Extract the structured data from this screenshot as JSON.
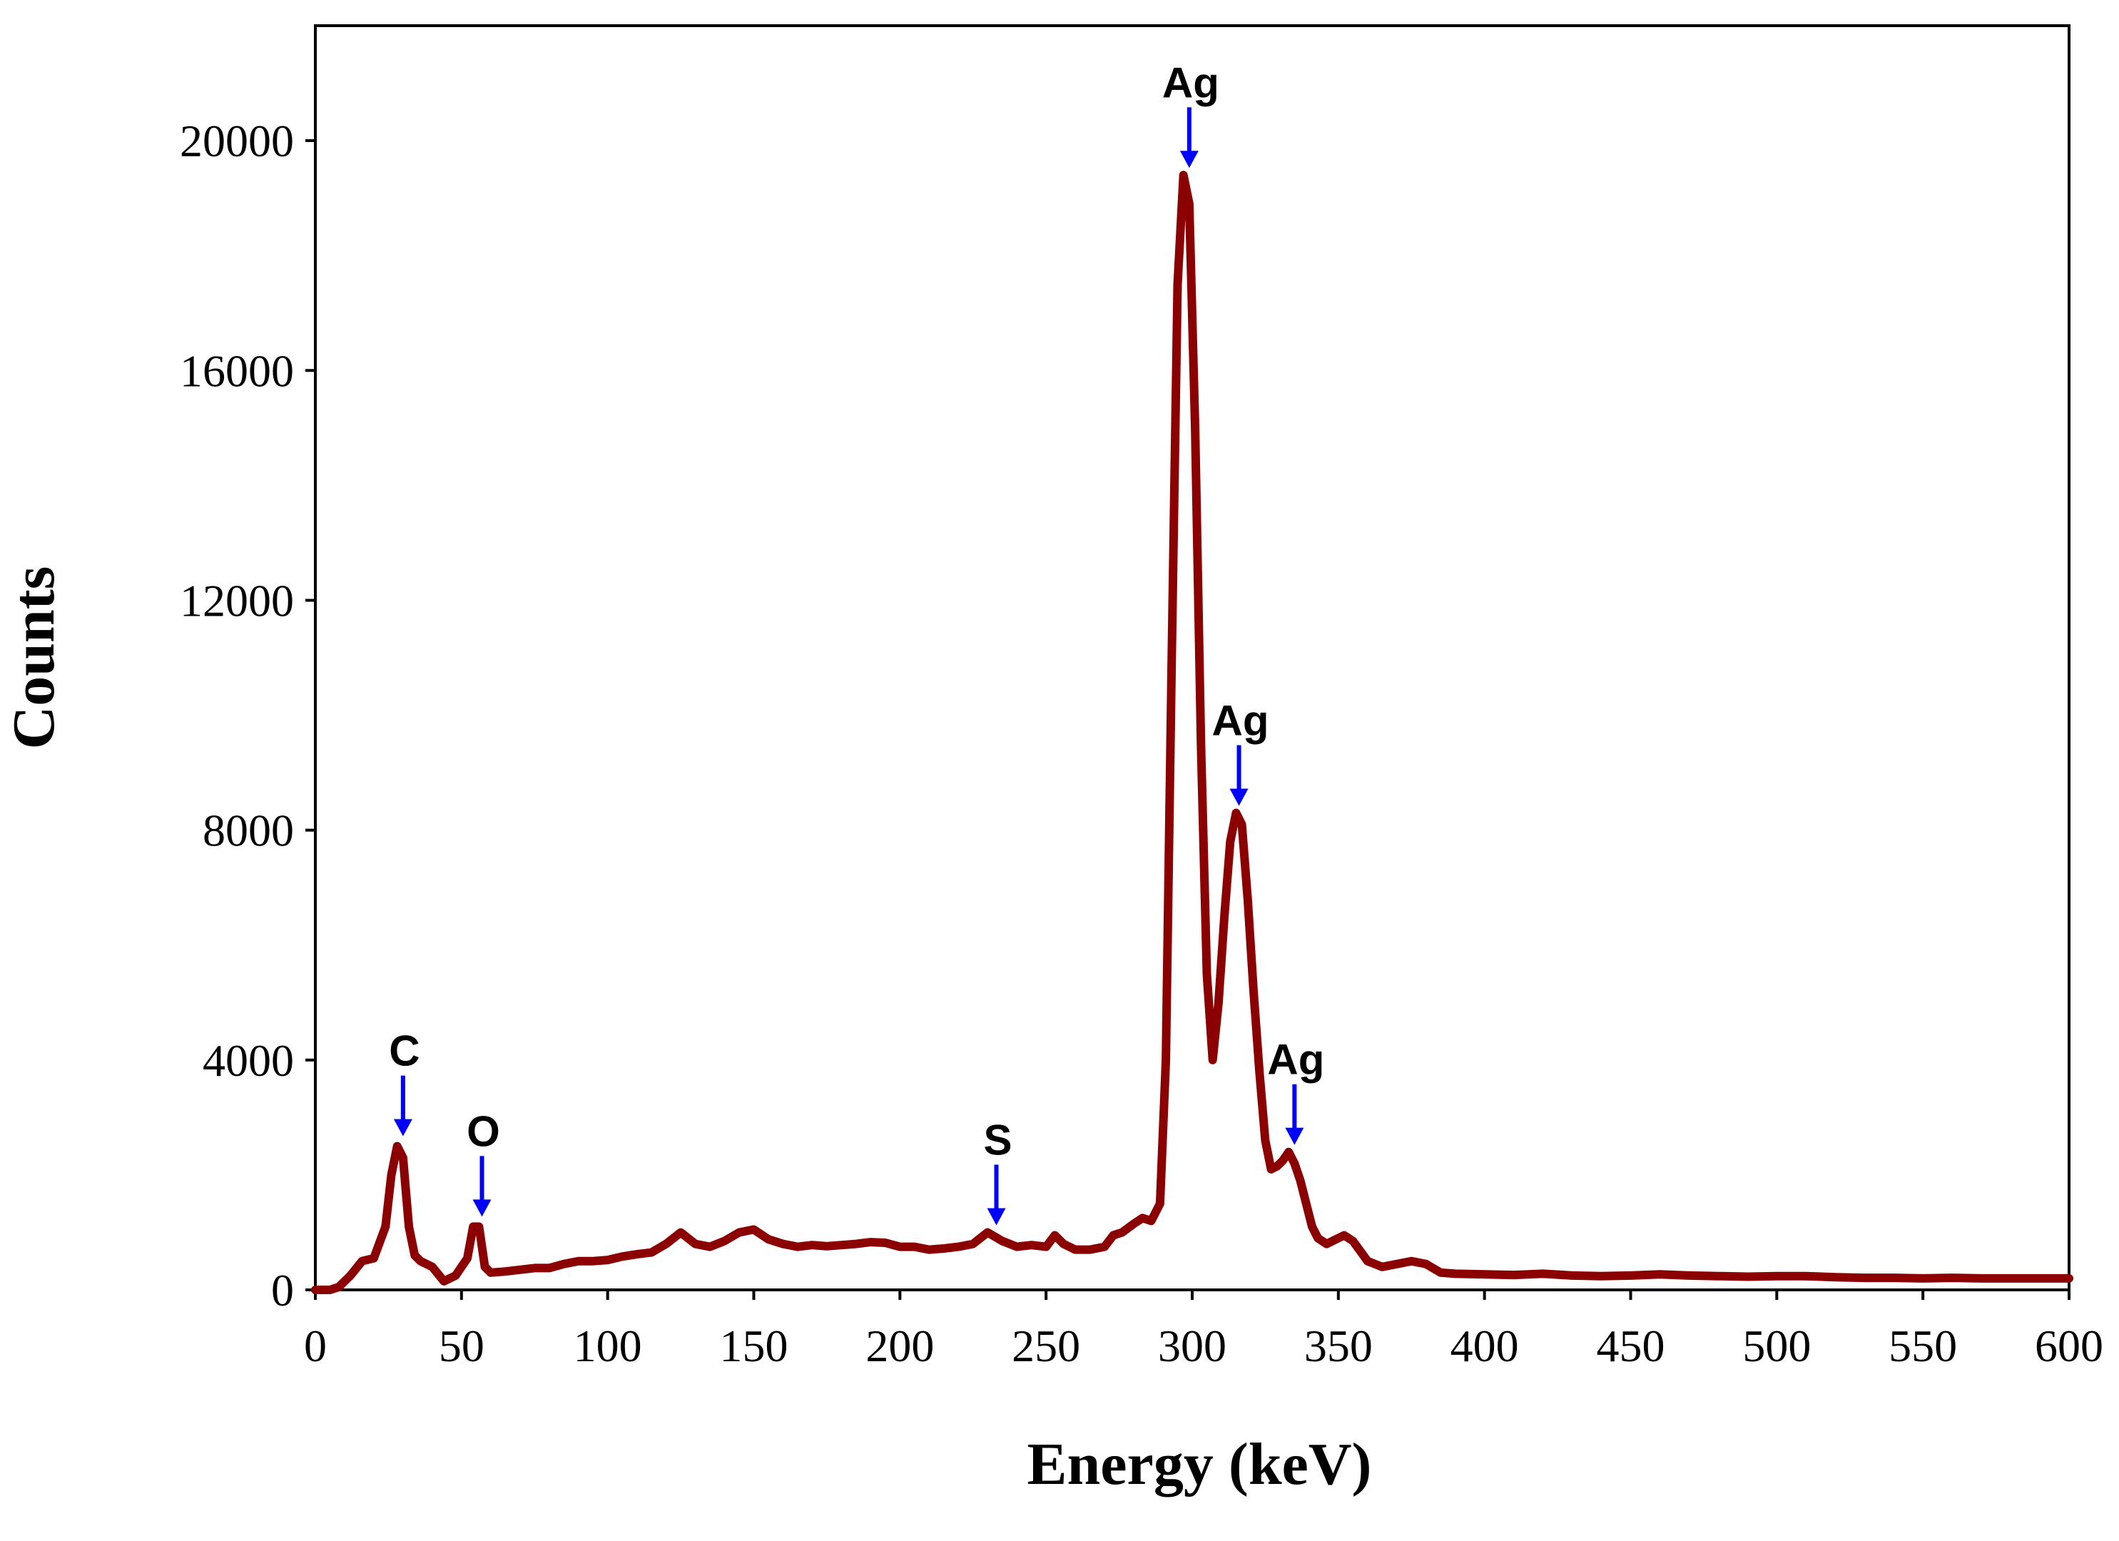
{
  "chart_data": {
    "type": "line",
    "title": "",
    "xlabel": "Energy (keV)",
    "ylabel": "Counts",
    "xlim": [
      0,
      600
    ],
    "ylim": [
      0,
      22000
    ],
    "x_ticks": [
      0,
      50,
      100,
      150,
      200,
      250,
      300,
      350,
      400,
      450,
      500,
      550,
      600
    ],
    "x_tick_labels": [
      "0",
      "50",
      "100",
      "150",
      "200",
      "250",
      "300",
      "350",
      "400",
      "450",
      "500",
      "550",
      "600"
    ],
    "y_ticks": [
      0,
      4000,
      8000,
      12000,
      16000,
      20000
    ],
    "y_tick_labels": [
      "0",
      "4000",
      "8000",
      "12000",
      "16000",
      "20000"
    ],
    "grid": false,
    "colors": {
      "line": "#8b0000",
      "arrow": "#0000ff",
      "axis": "#000000"
    },
    "series": [
      {
        "name": "EDS spectrum",
        "x": [
          0,
          5,
          8,
          12,
          16,
          20,
          24,
          26,
          28,
          30,
          32,
          34,
          36,
          40,
          44,
          48,
          52,
          54,
          56,
          58,
          60,
          65,
          70,
          75,
          80,
          85,
          90,
          95,
          100,
          105,
          110,
          115,
          120,
          125,
          130,
          135,
          140,
          145,
          150,
          155,
          160,
          165,
          170,
          175,
          180,
          185,
          190,
          195,
          200,
          205,
          210,
          215,
          220,
          225,
          230,
          235,
          240,
          245,
          250,
          253,
          256,
          260,
          265,
          270,
          273,
          276,
          280,
          283,
          286,
          289,
          291,
          293,
          295,
          297,
          299,
          301,
          303,
          305,
          307,
          309,
          311,
          313,
          315,
          317,
          319,
          321,
          323,
          325,
          327,
          329,
          331,
          333,
          335,
          337,
          339,
          341,
          343,
          346,
          350,
          352,
          355,
          360,
          365,
          370,
          375,
          380,
          385,
          390,
          400,
          410,
          420,
          430,
          440,
          450,
          460,
          470,
          480,
          490,
          500,
          510,
          520,
          530,
          540,
          550,
          560,
          570,
          580,
          590,
          600
        ],
        "y": [
          0,
          0,
          50,
          250,
          500,
          550,
          1100,
          2000,
          2500,
          2300,
          1100,
          600,
          500,
          400,
          150,
          250,
          550,
          1100,
          1100,
          400,
          300,
          320,
          350,
          380,
          380,
          450,
          500,
          500,
          520,
          580,
          620,
          650,
          800,
          1000,
          800,
          750,
          850,
          1000,
          1050,
          880,
          800,
          750,
          780,
          760,
          780,
          800,
          830,
          820,
          750,
          750,
          700,
          720,
          750,
          800,
          1000,
          850,
          750,
          780,
          750,
          950,
          800,
          700,
          700,
          750,
          950,
          1000,
          1150,
          1250,
          1200,
          1500,
          4000,
          11000,
          17500,
          19400,
          18900,
          15000,
          9500,
          5500,
          4000,
          5000,
          6500,
          7800,
          8300,
          8100,
          6800,
          5200,
          3800,
          2600,
          2100,
          2150,
          2250,
          2400,
          2200,
          1900,
          1500,
          1100,
          900,
          800,
          900,
          950,
          850,
          500,
          400,
          450,
          500,
          450,
          300,
          280,
          270,
          260,
          280,
          250,
          240,
          250,
          270,
          250,
          240,
          230,
          240,
          240,
          220,
          210,
          210,
          200,
          210,
          200,
          200,
          200,
          200
        ]
      }
    ],
    "annotations": [
      {
        "label": "C",
        "x": 30,
        "y": 2550
      },
      {
        "label": "O",
        "x": 57,
        "y": 1150
      },
      {
        "label": "S",
        "x": 233,
        "y": 1000
      },
      {
        "label": "Ag",
        "x": 299,
        "y": 19400
      },
      {
        "label": "Ag",
        "x": 316,
        "y": 8300
      },
      {
        "label": "Ag",
        "x": 335,
        "y": 2400
      }
    ]
  }
}
